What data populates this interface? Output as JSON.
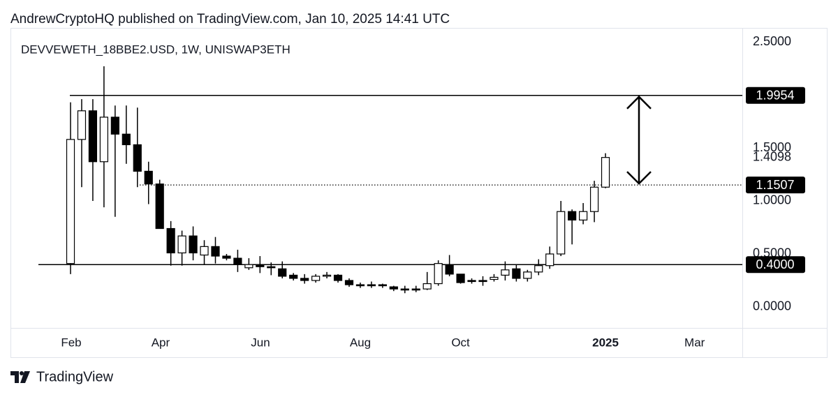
{
  "header": {
    "publisher": "AndrewCryptoHQ published on TradingView.com, Jan 10, 2025 14:41 UTC"
  },
  "footer": {
    "brand": "TradingView"
  },
  "chart_data": {
    "type": "candlestick",
    "title": "DEVVEWETH_18BBE2.USD, 1W, UNISWAP3ETH",
    "open": [
      0.41,
      1.58,
      1.85,
      1.37,
      1.79,
      1.63,
      1.53,
      1.28,
      1.16,
      0.74,
      0.51,
      0.67,
      0.49,
      0.57,
      0.48,
      0.46,
      0.37,
      0.4,
      0.38,
      0.36,
      0.3,
      0.27,
      0.25,
      0.29,
      0.3,
      0.25,
      0.21,
      0.21,
      0.21,
      0.19,
      0.17,
      0.17,
      0.17,
      0.22,
      0.4,
      0.31,
      0.25,
      0.25,
      0.26,
      0.3,
      0.36,
      0.27,
      0.33,
      0.39,
      0.5,
      0.9,
      0.82,
      0.9,
      1.13
    ],
    "high": [
      1.93,
      1.96,
      1.96,
      2.27,
      1.9,
      1.9,
      1.88,
      1.37,
      1.2,
      0.81,
      0.72,
      0.76,
      0.63,
      0.66,
      0.5,
      0.54,
      0.46,
      0.48,
      0.42,
      0.43,
      0.32,
      0.31,
      0.31,
      0.33,
      0.31,
      0.27,
      0.23,
      0.24,
      0.22,
      0.2,
      0.2,
      0.2,
      0.33,
      0.44,
      0.49,
      0.31,
      0.27,
      0.29,
      0.31,
      0.43,
      0.4,
      0.35,
      0.45,
      0.57,
      1.0,
      0.92,
      0.98,
      1.19,
      1.45
    ],
    "low": [
      0.31,
      1.13,
      1.0,
      0.94,
      0.85,
      1.35,
      1.13,
      0.97,
      0.74,
      0.39,
      0.39,
      0.44,
      0.4,
      0.41,
      0.44,
      0.33,
      0.35,
      0.32,
      0.3,
      0.27,
      0.25,
      0.22,
      0.23,
      0.27,
      0.23,
      0.19,
      0.18,
      0.18,
      0.18,
      0.15,
      0.13,
      0.14,
      0.16,
      0.2,
      0.29,
      0.22,
      0.22,
      0.2,
      0.24,
      0.25,
      0.24,
      0.24,
      0.3,
      0.36,
      0.48,
      0.59,
      0.78,
      0.8,
      1.12
    ],
    "close": [
      1.58,
      1.85,
      1.37,
      1.79,
      1.63,
      1.53,
      1.28,
      1.16,
      0.74,
      0.51,
      0.67,
      0.51,
      0.57,
      0.48,
      0.46,
      0.4,
      0.4,
      0.38,
      0.37,
      0.29,
      0.27,
      0.25,
      0.29,
      0.3,
      0.25,
      0.21,
      0.2,
      0.2,
      0.2,
      0.17,
      0.16,
      0.16,
      0.22,
      0.41,
      0.31,
      0.23,
      0.24,
      0.24,
      0.28,
      0.35,
      0.27,
      0.33,
      0.39,
      0.5,
      0.9,
      0.82,
      0.9,
      1.13,
      1.41
    ],
    "up_color": "#ffffff",
    "down_color": "#000000",
    "xlim": [
      -5.39,
      60.28
    ],
    "xticks": [
      {
        "value": 0.06,
        "label": "Feb"
      },
      {
        "value": 8.08,
        "label": "Apr"
      },
      {
        "value": 17.04,
        "label": "Jun"
      },
      {
        "value": 26.0,
        "label": "Aug"
      },
      {
        "value": 35.0,
        "label": "Oct"
      },
      {
        "value": 48.0,
        "label": "2025"
      },
      {
        "value": 56.0,
        "label": "Mar"
      }
    ],
    "ylim": [
      -0.1974,
      2.6316
    ],
    "yticks": [
      {
        "value": 0,
        "label": "0.0000"
      },
      {
        "value": 0.5,
        "label": "0.5000"
      },
      {
        "value": 1,
        "label": "1.0000"
      },
      {
        "value": 1.5,
        "label": "1.5000"
      },
      {
        "value": 2.5,
        "label": "2.5000"
      }
    ],
    "levels": [
      1.9954,
      1.1507,
      {
        "value": 0.4,
        "label": "0.4000"
      }
    ],
    "last_price": 1.4098
  }
}
